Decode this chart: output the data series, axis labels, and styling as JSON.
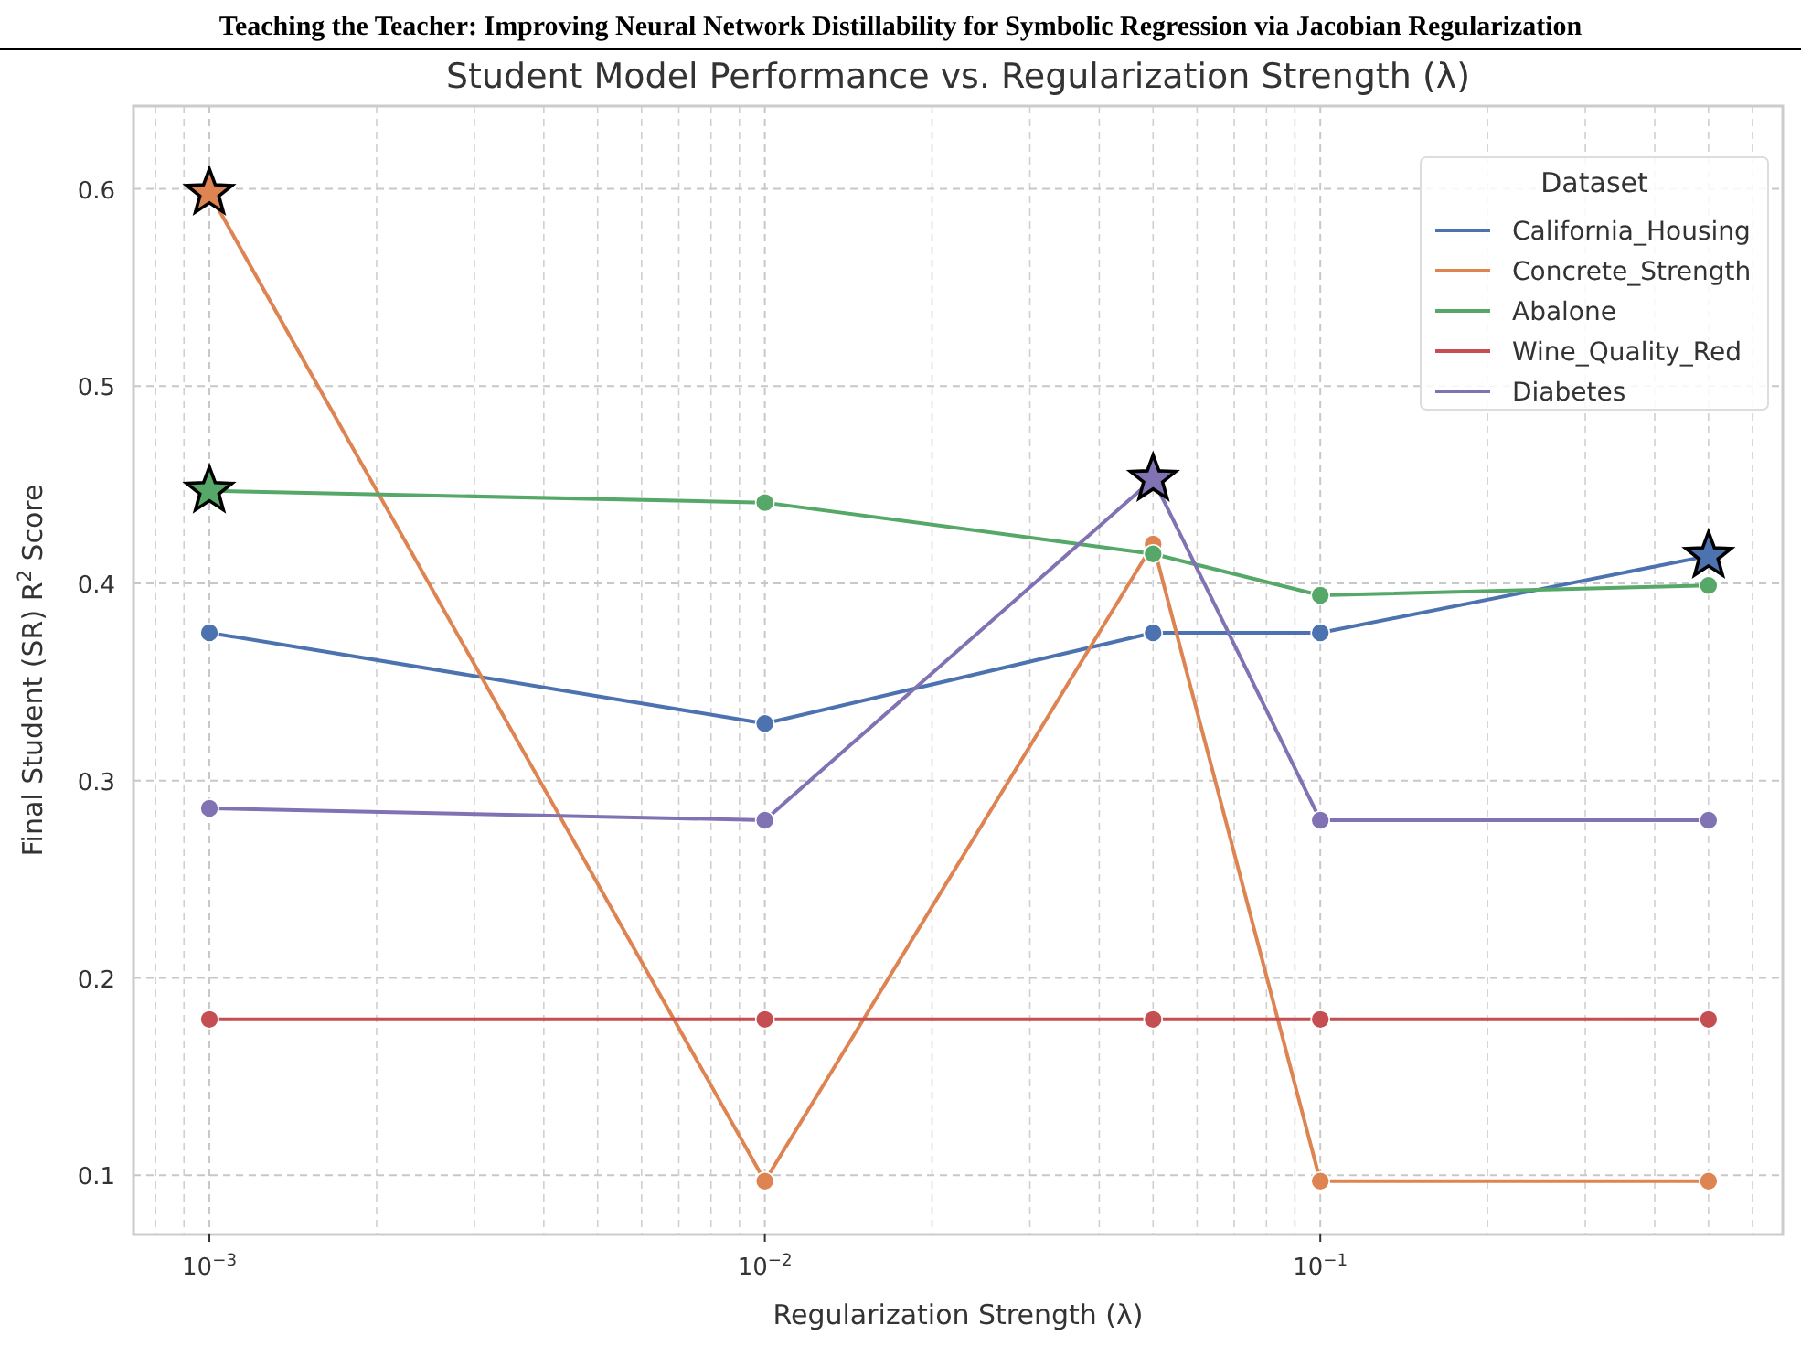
{
  "chart_data": {
    "type": "line",
    "title": "Student Model Performance vs. Regularization Strength (λ)",
    "xlabel": "Regularization Strength (λ)",
    "ylabel": "Final Student (SR) R$^{2}$ Score",
    "legend_title": "Dataset",
    "annotations": [
      "Teaching the Teacher: Improving Neural Network Distillability for Symbolic Regression via Jacobian Regularization"
    ],
    "x": [
      0.001,
      0.01,
      0.05,
      0.1,
      0.5
    ],
    "series": [
      {
        "name": "California_Housing",
        "color": "#4c72b0",
        "values": [
          0.375,
          0.329,
          0.375,
          0.375,
          0.414
        ]
      },
      {
        "name": "Concrete_Strength",
        "color": "#dd8452",
        "values": [
          0.598,
          0.097,
          0.42,
          0.097,
          0.097
        ]
      },
      {
        "name": "Abalone",
        "color": "#55a868",
        "values": [
          0.447,
          0.441,
          0.415,
          0.394,
          0.399
        ]
      },
      {
        "name": "Wine_Quality_Red",
        "color": "#c44e52",
        "values": [
          0.179,
          0.179,
          0.179,
          0.179,
          0.179
        ]
      },
      {
        "name": "Diabetes",
        "color": "#8172b3",
        "values": [
          0.286,
          0.28,
          0.453,
          0.28,
          0.28
        ]
      },
      {
        "type": "scatter",
        "marker": "star",
        "x": [
          0.001,
          0.001,
          0.05,
          0.5
        ],
        "values": [
          0.598,
          0.447,
          0.453,
          0.414
        ],
        "colors": [
          "#dd8452",
          "#55a868",
          "#8172b3",
          "#4c72b0"
        ]
      }
    ],
    "marker": "circle",
    "log": "x",
    "grid": true,
    "legend": "top right",
    "xlim": [
      0.00073,
      0.68
    ],
    "xticks": [
      {
        "value": 0.001,
        "label": "10$^{−3}$"
      },
      {
        "value": 0.01,
        "label": "10$^{−2}$"
      },
      {
        "value": 0.1,
        "label": "10$^{−1}$"
      }
    ],
    "ylim": [
      0.07,
      0.642
    ],
    "yticks": [
      0.1,
      0.2,
      0.3,
      0.4,
      0.5,
      0.6
    ]
  }
}
